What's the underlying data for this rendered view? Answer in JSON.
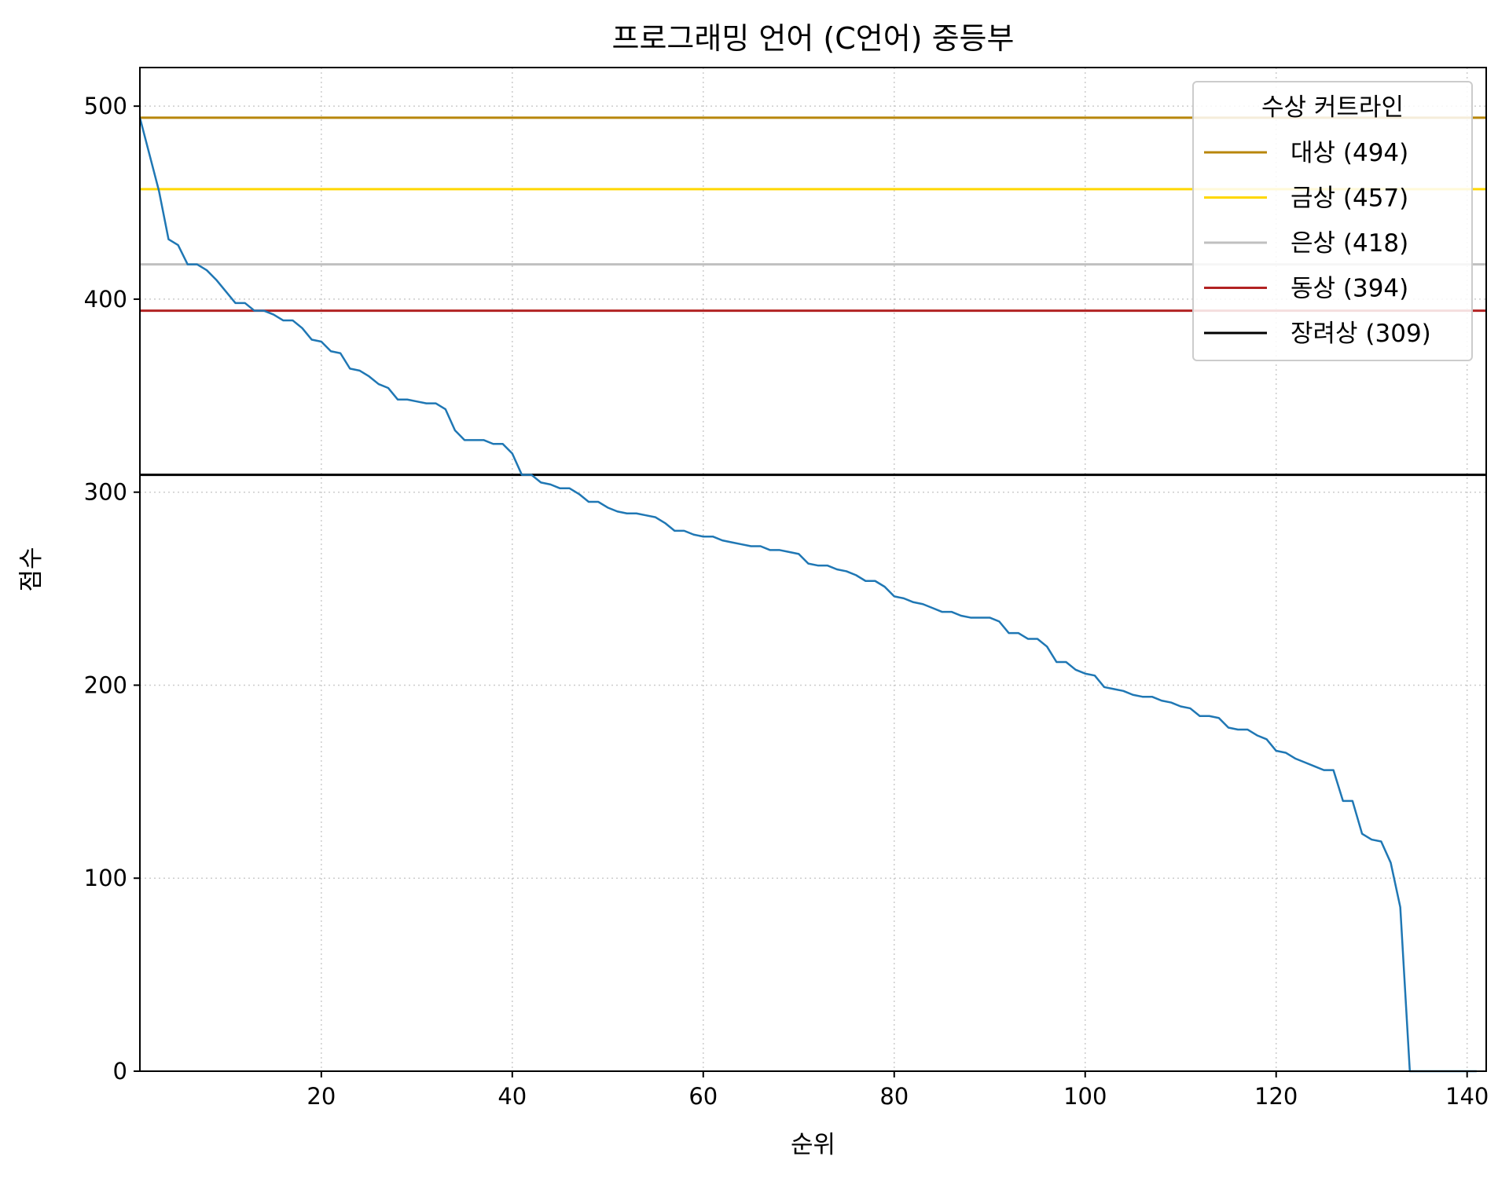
{
  "chart_data": {
    "type": "line",
    "title": "프로그래밍 언어 (C언어) 중등부",
    "xlabel": "순위",
    "ylabel": "점수",
    "xlim": [
      1,
      142
    ],
    "ylim": [
      0,
      520
    ],
    "xticks": [
      20,
      40,
      60,
      80,
      100,
      120,
      140
    ],
    "yticks": [
      0,
      100,
      200,
      300,
      400,
      500
    ],
    "grid": true,
    "legend": {
      "title": "수상 커트라인",
      "position": "top-right"
    },
    "series": [
      {
        "color": "#1f77b4",
        "x": [
          1,
          2,
          3,
          4,
          5,
          6,
          7,
          8,
          9,
          10,
          11,
          12,
          13,
          14,
          15,
          16,
          17,
          18,
          19,
          20,
          21,
          22,
          23,
          24,
          25,
          26,
          27,
          28,
          29,
          30,
          31,
          32,
          33,
          34,
          35,
          36,
          37,
          38,
          39,
          40,
          41,
          42,
          43,
          44,
          45,
          46,
          47,
          48,
          49,
          50,
          51,
          52,
          53,
          54,
          55,
          56,
          57,
          58,
          59,
          60,
          61,
          62,
          63,
          64,
          65,
          66,
          67,
          68,
          69,
          70,
          71,
          72,
          73,
          74,
          75,
          76,
          77,
          78,
          79,
          80,
          81,
          82,
          83,
          84,
          85,
          86,
          87,
          88,
          89,
          90,
          91,
          92,
          93,
          94,
          95,
          96,
          97,
          98,
          99,
          100,
          101,
          102,
          103,
          104,
          105,
          106,
          107,
          108,
          109,
          110,
          111,
          112,
          113,
          114,
          115,
          116,
          117,
          118,
          119,
          120,
          121,
          122,
          123,
          124,
          125,
          126,
          127,
          128,
          129,
          130,
          131,
          132,
          133,
          134,
          135,
          136,
          137,
          138,
          139,
          140,
          141
        ],
        "y": [
          494,
          475,
          456,
          431,
          428,
          418,
          418,
          415,
          410,
          404,
          398,
          398,
          394,
          394,
          392,
          389,
          389,
          385,
          379,
          378,
          373,
          372,
          364,
          363,
          360,
          356,
          354,
          348,
          348,
          347,
          346,
          346,
          343,
          332,
          327,
          327,
          327,
          325,
          325,
          320,
          309,
          309,
          305,
          304,
          302,
          302,
          299,
          295,
          295,
          292,
          290,
          289,
          289,
          288,
          287,
          284,
          280,
          280,
          278,
          277,
          277,
          275,
          274,
          273,
          272,
          272,
          270,
          270,
          269,
          268,
          263,
          262,
          262,
          260,
          259,
          257,
          254,
          254,
          251,
          246,
          245,
          243,
          242,
          240,
          238,
          238,
          236,
          235,
          235,
          235,
          233,
          227,
          227,
          224,
          224,
          220,
          212,
          212,
          208,
          206,
          205,
          199,
          198,
          197,
          195,
          194,
          194,
          192,
          191,
          189,
          188,
          184,
          184,
          183,
          178,
          177,
          177,
          174,
          172,
          166,
          165,
          162,
          160,
          158,
          156,
          156,
          140,
          140,
          123,
          120,
          119,
          108,
          85,
          0,
          0,
          0,
          0,
          0,
          0,
          0,
          0
        ]
      }
    ],
    "cutlines": [
      {
        "label": "대상 (494)",
        "value": 494,
        "color": "#b8860b"
      },
      {
        "label": "금상 (457)",
        "value": 457,
        "color": "#ffd700"
      },
      {
        "label": "은상 (418)",
        "value": 418,
        "color": "#c0c0c0"
      },
      {
        "label": "동상 (394)",
        "value": 394,
        "color": "#b22222"
      },
      {
        "label": "장려상 (309)",
        "value": 309,
        "color": "#000000"
      }
    ]
  }
}
